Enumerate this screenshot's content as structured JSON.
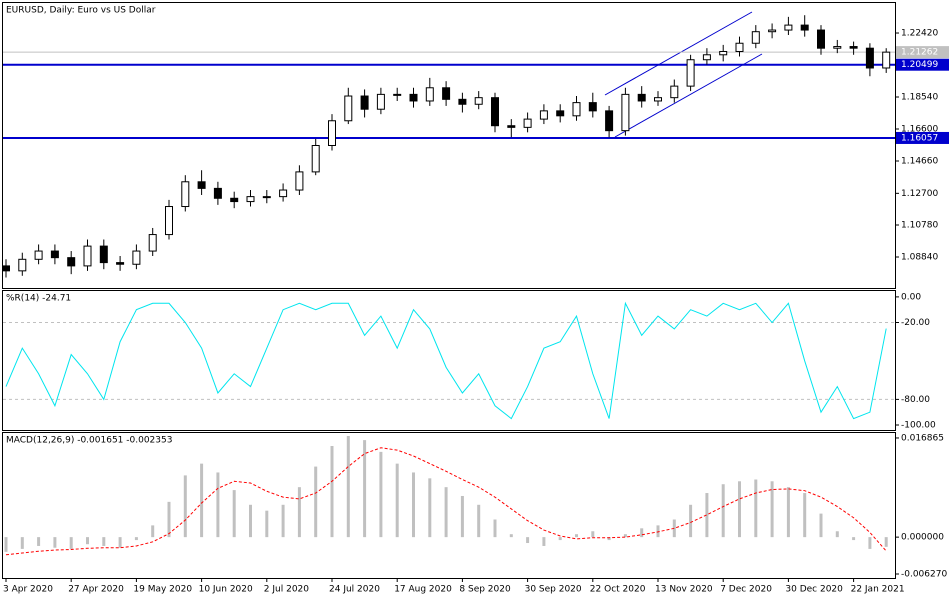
{
  "chart_data": [
    {
      "type": "candlestick",
      "title": "EURUSD, Daily:  Euro vs US Dollar",
      "categories": [
        "3 Apr 2020",
        null,
        null,
        null,
        "27 Apr 2020",
        null,
        null,
        null,
        "19 May 2020",
        null,
        null,
        null,
        "10 Jun 2020",
        null,
        null,
        null,
        "2 Jul 2020",
        null,
        null,
        null,
        "24 Jul 2020",
        null,
        null,
        null,
        "17 Aug 2020",
        null,
        null,
        null,
        "8 Sep 2020",
        null,
        null,
        null,
        "30 Sep 2020",
        null,
        null,
        null,
        "22 Oct 2020",
        null,
        null,
        null,
        "13 Nov 2020",
        null,
        null,
        null,
        "7 Dec 2020",
        null,
        null,
        null,
        "30 Dec 2020",
        null,
        null,
        null,
        "22 Jan 2021",
        null,
        null
      ],
      "open": [
        1.083,
        1.08,
        1.087,
        1.092,
        1.088,
        1.083,
        1.095,
        1.085,
        1.084,
        1.092,
        1.102,
        1.119,
        1.134,
        1.13,
        1.124,
        1.122,
        1.125,
        1.125,
        1.129,
        1.14,
        1.156,
        1.171,
        1.186,
        1.178,
        1.187,
        1.187,
        1.183,
        1.191,
        1.184,
        1.181,
        1.185,
        1.168,
        1.167,
        1.172,
        1.177,
        1.174,
        1.182,
        1.177,
        1.165,
        1.187,
        1.183,
        1.185,
        1.192,
        1.208,
        1.211,
        1.213,
        1.218,
        1.225,
        1.226,
        1.229,
        1.226,
        1.215,
        1.216,
        1.215,
        1.203
      ],
      "high": [
        1.087,
        1.091,
        1.096,
        1.096,
        1.092,
        1.099,
        1.099,
        1.089,
        1.096,
        1.106,
        1.123,
        1.138,
        1.141,
        1.134,
        1.128,
        1.129,
        1.129,
        1.133,
        1.144,
        1.16,
        1.175,
        1.191,
        1.19,
        1.191,
        1.191,
        1.191,
        1.197,
        1.195,
        1.188,
        1.189,
        1.188,
        1.172,
        1.176,
        1.181,
        1.181,
        1.186,
        1.188,
        1.18,
        1.191,
        1.192,
        1.189,
        1.196,
        1.211,
        1.215,
        1.217,
        1.222,
        1.229,
        1.23,
        1.234,
        1.235,
        1.229,
        1.22,
        1.219,
        1.218,
        1.215
      ],
      "low": [
        1.076,
        1.077,
        1.084,
        1.084,
        1.078,
        1.08,
        1.081,
        1.08,
        1.081,
        1.089,
        1.099,
        1.116,
        1.126,
        1.12,
        1.118,
        1.119,
        1.121,
        1.122,
        1.126,
        1.138,
        1.153,
        1.169,
        1.173,
        1.175,
        1.183,
        1.179,
        1.18,
        1.18,
        1.176,
        1.178,
        1.164,
        1.161,
        1.164,
        1.169,
        1.17,
        1.171,
        1.173,
        1.161,
        1.162,
        1.179,
        1.18,
        1.182,
        1.189,
        1.205,
        1.207,
        1.21,
        1.215,
        1.221,
        1.223,
        1.222,
        1.211,
        1.212,
        1.211,
        1.198,
        1.2
      ],
      "close": [
        1.08,
        1.087,
        1.092,
        1.088,
        1.083,
        1.095,
        1.085,
        1.084,
        1.092,
        1.102,
        1.119,
        1.134,
        1.13,
        1.124,
        1.122,
        1.125,
        1.125,
        1.129,
        1.14,
        1.156,
        1.171,
        1.186,
        1.178,
        1.187,
        1.187,
        1.183,
        1.191,
        1.184,
        1.181,
        1.185,
        1.168,
        1.167,
        1.172,
        1.177,
        1.174,
        1.182,
        1.177,
        1.165,
        1.187,
        1.183,
        1.185,
        1.192,
        1.208,
        1.211,
        1.213,
        1.218,
        1.225,
        1.226,
        1.229,
        1.226,
        1.215,
        1.216,
        1.215,
        1.203,
        1.2126
      ],
      "ylim": [
        1.0696,
        1.2424
      ],
      "yticks": [
        {
          "value": 1.2242,
          "label": "1.22420"
        },
        {
          "value": 1.1854,
          "label": "1.18540"
        },
        {
          "value": 1.166,
          "label": "1.16600"
        },
        {
          "value": 1.1466,
          "label": "1.14660"
        },
        {
          "value": 1.127,
          "label": "1.12700"
        },
        {
          "value": 1.1078,
          "label": "1.10780"
        },
        {
          "value": 1.0884,
          "label": "1.08840"
        }
      ],
      "levels": [
        {
          "value": 1.21262,
          "color": "#c0c0c0"
        },
        {
          "value": 1.20499,
          "color": "#0000cd"
        },
        {
          "value": 1.16057,
          "color": "#0000cd"
        }
      ]
    },
    {
      "type": "line",
      "title": "%R(14) -24.71",
      "color": "#00e5ee",
      "values": [
        -70,
        -40,
        -60,
        -85,
        -45,
        -60,
        -80,
        -35,
        -10,
        -5,
        -5,
        -20,
        -40,
        -75,
        -60,
        -70,
        -40,
        -10,
        -5,
        -10,
        -5,
        -5,
        -30,
        -15,
        -40,
        -10,
        -25,
        -55,
        -75,
        -60,
        -85,
        -95,
        -70,
        -40,
        -35,
        -15,
        -60,
        -95,
        -5,
        -30,
        -15,
        -25,
        -10,
        -15,
        -5,
        -10,
        -5,
        -20,
        -5,
        -50,
        -90,
        -70,
        -95,
        -90,
        -24.71
      ],
      "ylim": [
        -103.9,
        4.6
      ],
      "yticks": [
        {
          "value": 0,
          "label": "0.00"
        },
        {
          "value": -20,
          "label": "-20.00"
        },
        {
          "value": -80,
          "label": "-80.00"
        },
        {
          "value": -100,
          "label": "-100.00"
        }
      ],
      "levels": [
        -20,
        -80
      ]
    },
    {
      "type": "macd",
      "title": "MACD(12,26,9) -0.001651 -0.002353",
      "color": "#c0c0c0",
      "signal_color": "#ff0000",
      "values": [
        -0.0025,
        -0.002,
        -0.0015,
        -0.0018,
        -0.002,
        -0.0012,
        -0.0015,
        -0.0018,
        -0.0005,
        0.002,
        0.006,
        0.0105,
        0.0125,
        0.011,
        0.008,
        0.0055,
        0.0045,
        0.0055,
        0.0085,
        0.012,
        0.0155,
        0.0172,
        0.0165,
        0.0145,
        0.0125,
        0.011,
        0.01,
        0.0085,
        0.007,
        0.0055,
        0.003,
        0.0005,
        -0.001,
        -0.0015,
        -0.0005,
        0.0005,
        0.001,
        -0.0005,
        0.0005,
        0.0015,
        0.002,
        0.003,
        0.0055,
        0.0075,
        0.009,
        0.0095,
        0.0098,
        0.0095,
        0.0085,
        0.0075,
        0.004,
        0.001,
        -0.0005,
        -0.002,
        -0.001651
      ],
      "signal": [
        -0.003,
        -0.0027,
        -0.0024,
        -0.0022,
        -0.0021,
        -0.0019,
        -0.0018,
        -0.0018,
        -0.0015,
        -0.0008,
        0.0006,
        0.0029,
        0.0058,
        0.0083,
        0.0095,
        0.0092,
        0.0078,
        0.0068,
        0.0065,
        0.0075,
        0.0095,
        0.012,
        0.0142,
        0.0152,
        0.0148,
        0.0138,
        0.0125,
        0.0112,
        0.0098,
        0.0085,
        0.0068,
        0.0048,
        0.0028,
        0.0012,
        0.0002,
        -0.0003,
        -0.0001,
        -0.0001,
        0,
        0.0004,
        0.0009,
        0.0015,
        0.0025,
        0.0038,
        0.0052,
        0.0065,
        0.0075,
        0.0081,
        0.0082,
        0.0079,
        0.0068,
        0.0052,
        0.0033,
        0.0008,
        -0.002353
      ],
      "ylim": [
        -0.00695,
        0.01771
      ],
      "yticks": [
        {
          "value": 0.016865,
          "label": "0.016865"
        },
        {
          "value": 0,
          "label": "0.000000"
        },
        {
          "value": -0.00627,
          "label": "-0.006270"
        }
      ]
    }
  ]
}
